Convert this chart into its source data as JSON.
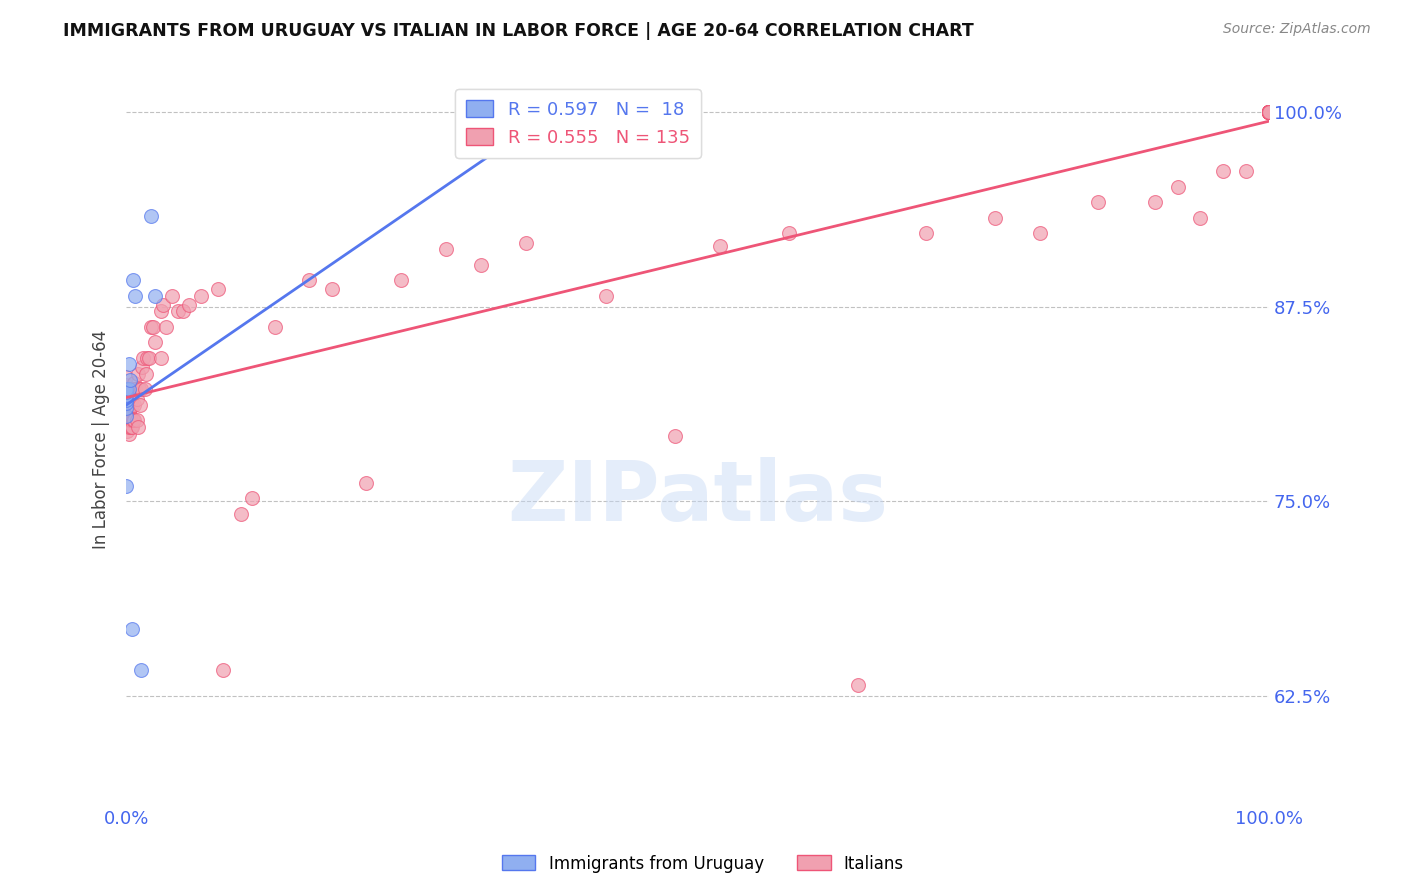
{
  "title": "IMMIGRANTS FROM URUGUAY VS ITALIAN IN LABOR FORCE | AGE 20-64 CORRELATION CHART",
  "source": "Source: ZipAtlas.com",
  "ylabel": "In Labor Force | Age 20-64",
  "yticks": [
    0.625,
    0.75,
    0.875,
    1.0
  ],
  "ytick_labels": [
    "62.5%",
    "75.0%",
    "87.5%",
    "100.0%"
  ],
  "legend_r_uruguay": "R = 0.597",
  "legend_n_uruguay": "N =  18",
  "legend_r_italian": "R = 0.555",
  "legend_n_italian": "N = 135",
  "legend_label_1": "Immigrants from Uruguay",
  "legend_label_2": "Italians",
  "uruguay_color": "#90aff0",
  "italian_color": "#f0a0b0",
  "trendline_uruguay_color": "#5577ee",
  "trendline_italian_color": "#ee5577",
  "background_color": "#ffffff",
  "grid_color": "#bbbbbb",
  "title_color": "#111111",
  "right_tick_color": "#4466ee",
  "watermark": "ZIPatlas",
  "xlim": [
    0.0,
    1.0
  ],
  "ylim": [
    0.555,
    1.025
  ],
  "uruguay_x": [
    0.0,
    0.0,
    0.0,
    0.0,
    0.0,
    0.0,
    0.0,
    0.0,
    0.002,
    0.002,
    0.003,
    0.005,
    0.006,
    0.008,
    0.013,
    0.022,
    0.025,
    0.38
  ],
  "uruguay_y": [
    0.805,
    0.81,
    0.813,
    0.815,
    0.818,
    0.82,
    0.822,
    0.76,
    0.838,
    0.822,
    0.828,
    0.668,
    0.892,
    0.882,
    0.642,
    0.933,
    0.882,
    0.998
  ],
  "italian_x": [
    0.0,
    0.0,
    0.0,
    0.0,
    0.0,
    0.0,
    0.0,
    0.0,
    0.001,
    0.001,
    0.001,
    0.001,
    0.002,
    0.002,
    0.002,
    0.002,
    0.002,
    0.003,
    0.003,
    0.003,
    0.004,
    0.004,
    0.004,
    0.005,
    0.005,
    0.006,
    0.006,
    0.007,
    0.007,
    0.007,
    0.008,
    0.009,
    0.009,
    0.01,
    0.01,
    0.011,
    0.012,
    0.013,
    0.014,
    0.015,
    0.016,
    0.017,
    0.018,
    0.02,
    0.022,
    0.023,
    0.025,
    0.03,
    0.03,
    0.032,
    0.035,
    0.04,
    0.045,
    0.05,
    0.055,
    0.065,
    0.08,
    0.085,
    0.1,
    0.11,
    0.13,
    0.16,
    0.18,
    0.21,
    0.24,
    0.28,
    0.31,
    0.35,
    0.42,
    0.48,
    0.52,
    0.58,
    0.64,
    0.7,
    0.76,
    0.8,
    0.85,
    0.9,
    0.92,
    0.94,
    0.96,
    0.98,
    1.0,
    1.0,
    1.0,
    1.0,
    1.0,
    1.0,
    1.0,
    1.0,
    1.0,
    1.0,
    1.0,
    1.0,
    1.0,
    1.0,
    1.0,
    1.0,
    1.0,
    1.0,
    1.0,
    1.0,
    1.0,
    1.0,
    1.0,
    1.0,
    1.0,
    1.0,
    1.0,
    1.0,
    1.0,
    1.0,
    1.0,
    1.0,
    1.0,
    1.0,
    1.0,
    1.0,
    1.0,
    1.0,
    1.0,
    1.0,
    1.0,
    1.0,
    1.0,
    1.0,
    1.0,
    1.0,
    1.0,
    1.0,
    1.0,
    1.0,
    1.0,
    1.0,
    1.0,
    1.0,
    1.0,
    1.0,
    1.0,
    1.0,
    1.0,
    1.0,
    1.0,
    1.0,
    1.0,
    1.0,
    1.0,
    1.0,
    1.0,
    1.0,
    1.0,
    1.0,
    1.0,
    1.0,
    1.0,
    1.0,
    1.0
  ],
  "italian_y": [
    0.8,
    0.81,
    0.815,
    0.818,
    0.82,
    0.822,
    0.825,
    0.83,
    0.795,
    0.8,
    0.805,
    0.812,
    0.793,
    0.798,
    0.802,
    0.808,
    0.822,
    0.802,
    0.805,
    0.812,
    0.798,
    0.802,
    0.816,
    0.798,
    0.812,
    0.802,
    0.822,
    0.802,
    0.812,
    0.826,
    0.822,
    0.802,
    0.816,
    0.798,
    0.832,
    0.822,
    0.812,
    0.822,
    0.836,
    0.842,
    0.822,
    0.832,
    0.842,
    0.842,
    0.862,
    0.862,
    0.852,
    0.872,
    0.842,
    0.876,
    0.862,
    0.882,
    0.872,
    0.872,
    0.876,
    0.882,
    0.886,
    0.642,
    0.742,
    0.752,
    0.862,
    0.892,
    0.886,
    0.762,
    0.892,
    0.912,
    0.902,
    0.916,
    0.882,
    0.792,
    0.914,
    0.922,
    0.632,
    0.922,
    0.932,
    0.922,
    0.942,
    0.942,
    0.952,
    0.932,
    0.962,
    0.962,
    1.0,
    1.0,
    1.0,
    1.0,
    1.0,
    1.0,
    1.0,
    1.0,
    1.0,
    1.0,
    1.0,
    1.0,
    1.0,
    1.0,
    1.0,
    1.0,
    1.0,
    1.0,
    1.0,
    1.0,
    1.0,
    1.0,
    1.0,
    1.0,
    1.0,
    1.0,
    1.0,
    1.0,
    1.0,
    1.0,
    1.0,
    1.0,
    1.0,
    1.0,
    1.0,
    1.0,
    1.0,
    1.0,
    1.0,
    1.0,
    1.0,
    1.0,
    1.0,
    1.0,
    1.0,
    1.0,
    1.0,
    1.0,
    1.0,
    1.0,
    1.0,
    1.0,
    1.0,
    1.0,
    1.0,
    1.0,
    1.0,
    1.0,
    1.0,
    1.0,
    1.0,
    1.0,
    1.0,
    1.0,
    1.0,
    1.0,
    1.0,
    1.0,
    1.0,
    1.0,
    1.0,
    1.0,
    1.0,
    1.0,
    1.0
  ]
}
